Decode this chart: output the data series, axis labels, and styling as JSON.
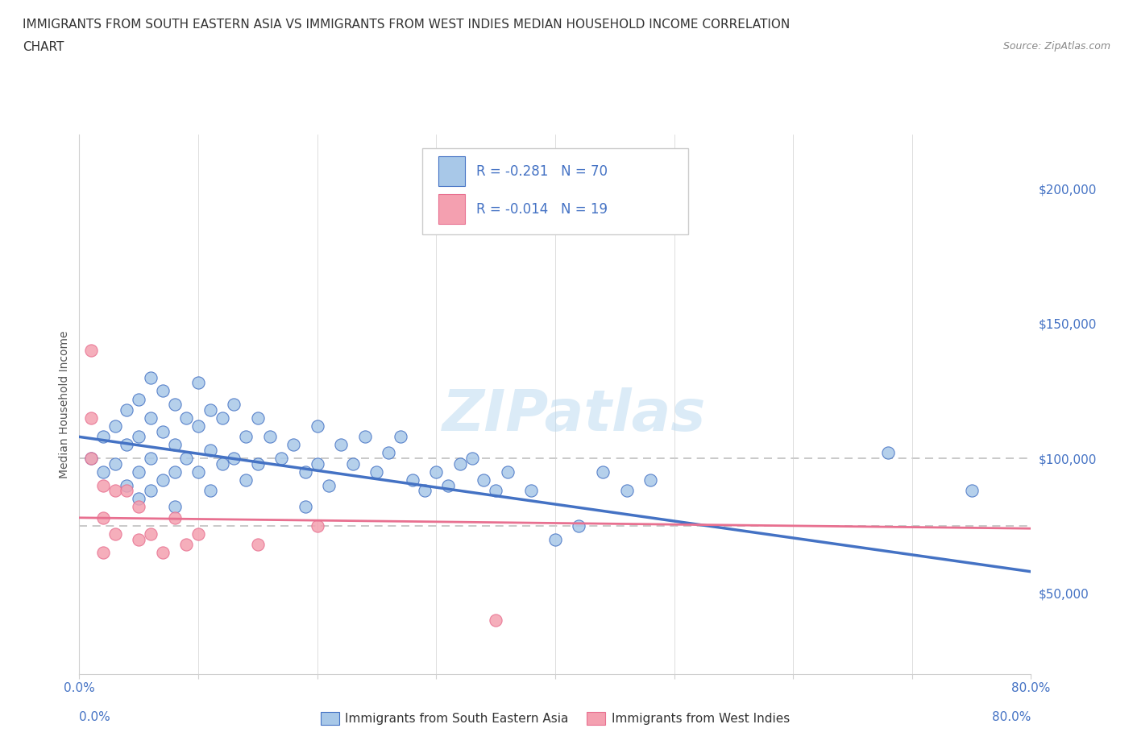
{
  "title_line1": "IMMIGRANTS FROM SOUTH EASTERN ASIA VS IMMIGRANTS FROM WEST INDIES MEDIAN HOUSEHOLD INCOME CORRELATION",
  "title_line2": "CHART",
  "source": "Source: ZipAtlas.com",
  "ylabel": "Median Household Income",
  "xlim": [
    0.0,
    0.8
  ],
  "ylim": [
    20000,
    220000
  ],
  "xticks": [
    0.0,
    0.1,
    0.2,
    0.3,
    0.4,
    0.5,
    0.6,
    0.7,
    0.8
  ],
  "xticklabels": [
    "0.0%",
    "",
    "",
    "",
    "",
    "",
    "",
    "",
    "80.0%"
  ],
  "yticks": [
    50000,
    100000,
    150000,
    200000
  ],
  "yticklabels": [
    "$50,000",
    "$100,000",
    "$150,000",
    "$200,000"
  ],
  "legend_R1": "R = -0.281",
  "legend_N1": "N = 70",
  "legend_R2": "R = -0.014",
  "legend_N2": "N = 19",
  "color_blue": "#A8C8E8",
  "color_pink": "#F4A0B0",
  "color_blue_dark": "#4472C4",
  "color_pink_dark": "#E87090",
  "trendline_blue": [
    0.0,
    108000,
    0.8,
    58000
  ],
  "trendline_pink": [
    0.0,
    78000,
    0.8,
    74000
  ],
  "dashed_line_y1": 100000,
  "dashed_line_y2": 75000,
  "scatter_blue_x": [
    0.01,
    0.02,
    0.02,
    0.03,
    0.03,
    0.04,
    0.04,
    0.04,
    0.05,
    0.05,
    0.05,
    0.05,
    0.06,
    0.06,
    0.06,
    0.06,
    0.07,
    0.07,
    0.07,
    0.08,
    0.08,
    0.08,
    0.08,
    0.09,
    0.09,
    0.1,
    0.1,
    0.1,
    0.11,
    0.11,
    0.11,
    0.12,
    0.12,
    0.13,
    0.13,
    0.14,
    0.14,
    0.15,
    0.15,
    0.16,
    0.17,
    0.18,
    0.19,
    0.19,
    0.2,
    0.2,
    0.21,
    0.22,
    0.23,
    0.24,
    0.25,
    0.26,
    0.27,
    0.28,
    0.29,
    0.3,
    0.31,
    0.32,
    0.33,
    0.34,
    0.35,
    0.36,
    0.38,
    0.4,
    0.42,
    0.44,
    0.46,
    0.48,
    0.68,
    0.75
  ],
  "scatter_blue_y": [
    100000,
    108000,
    95000,
    112000,
    98000,
    118000,
    105000,
    90000,
    122000,
    108000,
    95000,
    85000,
    130000,
    115000,
    100000,
    88000,
    125000,
    110000,
    92000,
    120000,
    105000,
    95000,
    82000,
    115000,
    100000,
    128000,
    112000,
    95000,
    118000,
    103000,
    88000,
    115000,
    98000,
    120000,
    100000,
    108000,
    92000,
    115000,
    98000,
    108000,
    100000,
    105000,
    95000,
    82000,
    112000,
    98000,
    90000,
    105000,
    98000,
    108000,
    95000,
    102000,
    108000,
    92000,
    88000,
    95000,
    90000,
    98000,
    100000,
    92000,
    88000,
    95000,
    88000,
    70000,
    75000,
    95000,
    88000,
    92000,
    102000,
    88000
  ],
  "scatter_pink_x": [
    0.01,
    0.01,
    0.01,
    0.02,
    0.02,
    0.02,
    0.03,
    0.03,
    0.04,
    0.05,
    0.05,
    0.06,
    0.07,
    0.08,
    0.09,
    0.1,
    0.15,
    0.2,
    0.35
  ],
  "scatter_pink_y": [
    140000,
    115000,
    100000,
    90000,
    78000,
    65000,
    88000,
    72000,
    88000,
    82000,
    70000,
    72000,
    65000,
    78000,
    68000,
    72000,
    68000,
    75000,
    40000
  ],
  "watermark": "ZIPatlas",
  "bg_color": "#FFFFFF",
  "grid_color": "#D0D0D0",
  "dashed_color": "#C0C0C0",
  "title_fontsize": 11,
  "source_fontsize": 9,
  "axis_label_fontsize": 10,
  "tick_fontsize": 11
}
